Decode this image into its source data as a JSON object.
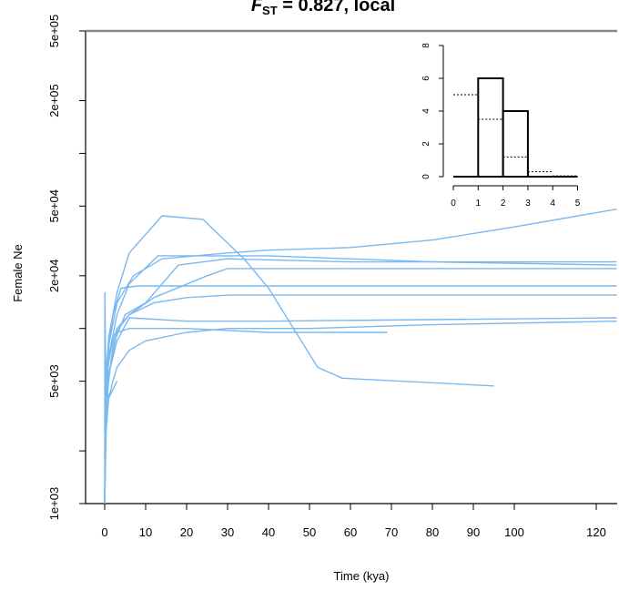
{
  "chart_data": {
    "type": "line",
    "title": {
      "italic": "F",
      "sub": "ST",
      "rest": " = 0.827, local"
    },
    "xlabel": "Time (kya)",
    "ylabel": "Female Ne",
    "xlim": [
      0,
      125
    ],
    "ylim": [
      1000,
      500000
    ],
    "y_scale": "log",
    "x_ticks": [
      0,
      10,
      20,
      30,
      40,
      50,
      60,
      70,
      80,
      90,
      100,
      120
    ],
    "y_ticks": [
      1000,
      2000,
      5000,
      10000,
      20000,
      50000,
      100000,
      200000,
      500000
    ],
    "y_tick_labels": [
      "1e+03",
      "",
      "5e+03",
      "",
      "2e+04",
      "5e+04",
      "",
      "2e+05",
      "5e+05"
    ],
    "line_color": "#7ab8f0",
    "series": [
      {
        "x": [
          0,
          0.2,
          0.5,
          1,
          3,
          6,
          14,
          24,
          34,
          40,
          45,
          52,
          58,
          95
        ],
        "values": [
          1000,
          3000,
          6000,
          9000,
          16000,
          27000,
          44000,
          42000,
          25000,
          17000,
          11000,
          6000,
          5200,
          4700
        ]
      },
      {
        "x": [
          0,
          0.3,
          1,
          3,
          7,
          14,
          30,
          40,
          60,
          80,
          100,
          125
        ],
        "values": [
          1000,
          4000,
          8000,
          14000,
          20000,
          25000,
          27000,
          28000,
          29000,
          32000,
          38000,
          48000
        ]
      },
      {
        "x": [
          0,
          0.3,
          1,
          3,
          6,
          13,
          40,
          80,
          125
        ],
        "values": [
          1000,
          3500,
          7000,
          12000,
          18000,
          26000,
          26000,
          24000,
          23000
        ]
      },
      {
        "x": [
          0,
          0.5,
          2,
          5,
          10,
          18,
          30,
          60,
          125
        ],
        "values": [
          1000,
          4000,
          8000,
          12000,
          14000,
          23000,
          25000,
          24000,
          24000
        ]
      },
      {
        "x": [
          0,
          0.3,
          2,
          6,
          12,
          25,
          30,
          60,
          125
        ],
        "values": [
          1000,
          5000,
          9000,
          12000,
          15000,
          20000,
          22000,
          22000,
          22000
        ]
      },
      {
        "x": [
          0,
          0.3,
          2,
          4,
          8,
          13,
          40,
          80,
          125
        ],
        "values": [
          1000,
          6000,
          12000,
          17000,
          17500,
          17500,
          17500,
          17500,
          17500
        ]
      },
      {
        "x": [
          0,
          0.3,
          1,
          3,
          6,
          12,
          20,
          30,
          60,
          125
        ],
        "values": [
          1000,
          4500,
          7000,
          10000,
          12000,
          14000,
          15000,
          15500,
          15500,
          15500
        ]
      },
      {
        "x": [
          0,
          0.3,
          1,
          3,
          6,
          20,
          40,
          125
        ],
        "values": [
          1000,
          3000,
          5500,
          8500,
          11500,
          11000,
          11000,
          11500
        ]
      },
      {
        "x": [
          0,
          0.3,
          1,
          3,
          6,
          12,
          20,
          40,
          69
        ],
        "values": [
          1000,
          3000,
          5500,
          9500,
          10000,
          10000,
          10000,
          9500,
          9500
        ]
      },
      {
        "x": [
          0,
          0.3,
          1,
          2,
          3,
          6,
          10,
          20,
          30,
          50,
          80,
          125
        ],
        "values": [
          1000,
          2500,
          4000,
          5000,
          6000,
          7500,
          8500,
          9500,
          10000,
          10000,
          10500,
          11000
        ]
      },
      {
        "x": [
          0,
          0.05,
          0.3,
          1,
          3
        ],
        "values": [
          1000,
          16000,
          5000,
          4000,
          5000
        ]
      }
    ],
    "inset": {
      "type": "histogram",
      "x_ticks": [
        0,
        1,
        2,
        3,
        4,
        5
      ],
      "y_ticks": [
        0,
        2,
        4,
        6,
        8
      ],
      "bins": [
        {
          "from": 0,
          "to": 1,
          "count": 0
        },
        {
          "from": 1,
          "to": 2,
          "count": 6
        },
        {
          "from": 2,
          "to": 3,
          "count": 4
        },
        {
          "from": 3,
          "to": 4,
          "count": 0
        },
        {
          "from": 4,
          "to": 5,
          "count": 0
        }
      ],
      "expected": [
        {
          "from": 0,
          "to": 1,
          "value": 5
        },
        {
          "from": 1,
          "to": 2,
          "value": 3.5
        },
        {
          "from": 2,
          "to": 3,
          "value": 1.2
        },
        {
          "from": 3,
          "to": 4,
          "value": 0.3
        },
        {
          "from": 4,
          "to": 5,
          "value": 0.05
        }
      ]
    }
  }
}
